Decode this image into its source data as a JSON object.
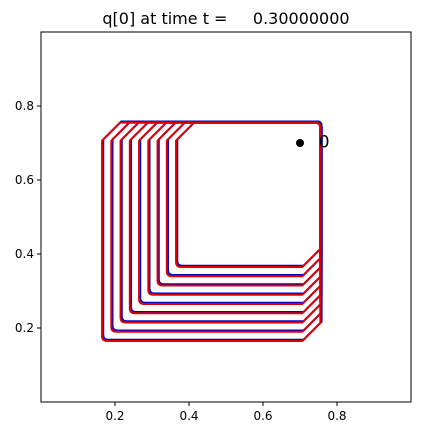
{
  "chart_data": {
    "type": "line",
    "title": "q[0] at time t =     0.30000000",
    "xlabel": "",
    "ylabel": "",
    "xlim": [
      0.0,
      1.0
    ],
    "ylim": [
      0.0,
      1.0
    ],
    "xticks": [
      0.2,
      0.4,
      0.6,
      0.8
    ],
    "yticks": [
      0.2,
      0.4,
      0.6,
      0.8
    ],
    "xtick_labels": [
      "0.2",
      "0.4",
      "0.6",
      "0.8"
    ],
    "ytick_labels": [
      "0.2",
      "0.4",
      "0.6",
      "0.8"
    ],
    "grid": false,
    "legend": "none",
    "contour_levels": {
      "x_left": [
        0.165,
        0.19,
        0.215,
        0.24,
        0.265,
        0.29,
        0.315,
        0.34,
        0.365
      ],
      "y_bottom": [
        0.165,
        0.19,
        0.215,
        0.24,
        0.265,
        0.29,
        0.315,
        0.34,
        0.365
      ],
      "x_right": 0.755,
      "y_top": 0.755
    },
    "series": [
      {
        "color": "#0000cc"
      },
      {
        "color": "#dd0000"
      }
    ],
    "point": {
      "x": 0.7,
      "y": 0.7,
      "color": "#000000"
    },
    "annotation": {
      "text": "0",
      "x": 0.74,
      "y": 0.72
    }
  }
}
